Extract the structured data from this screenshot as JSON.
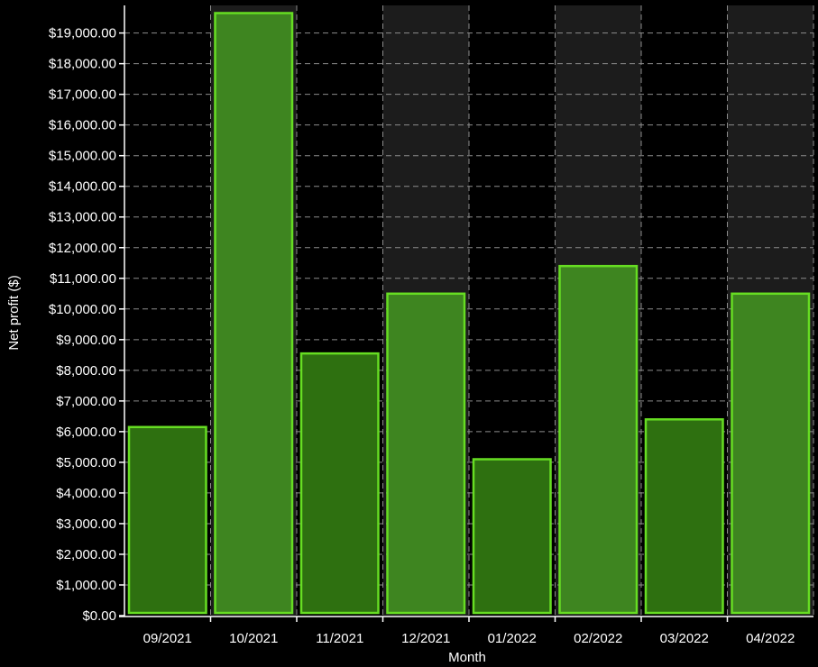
{
  "chart_data": {
    "type": "bar",
    "xlabel": "Month",
    "ylabel": "Net profit ($)",
    "categories": [
      "09/2021",
      "10/2021",
      "11/2021",
      "12/2021",
      "01/2022",
      "02/2022",
      "03/2022",
      "04/2022"
    ],
    "values": [
      6150,
      19650,
      8550,
      10500,
      5100,
      11400,
      6400,
      10500
    ],
    "ylim": [
      0,
      19900
    ],
    "yticks": [
      0,
      1000,
      2000,
      3000,
      4000,
      5000,
      6000,
      7000,
      8000,
      9000,
      10000,
      11000,
      12000,
      13000,
      14000,
      15000,
      16000,
      17000,
      18000,
      19000
    ],
    "ytick_labels": [
      "$0.00",
      "$1,000.00",
      "$2,000.00",
      "$3,000.00",
      "$4,000.00",
      "$5,000.00",
      "$6,000.00",
      "$7,000.00",
      "$8,000.00",
      "$9,000.00",
      "$10,000.00",
      "$11,000.00",
      "$12,000.00",
      "$13,000.00",
      "$14,000.00",
      "$15,000.00",
      "$16,000.00",
      "$17,000.00",
      "$18,000.00",
      "$19,000.00"
    ],
    "grid": true,
    "colors": {
      "background": "#000000",
      "alt_band": "#1c1c1c",
      "bar_fill_dark": "#2e7010",
      "bar_fill_light": "#3e8520",
      "bar_edge": "#66dd22",
      "text": "#ffffff",
      "grid": "#8c8c8c"
    }
  }
}
